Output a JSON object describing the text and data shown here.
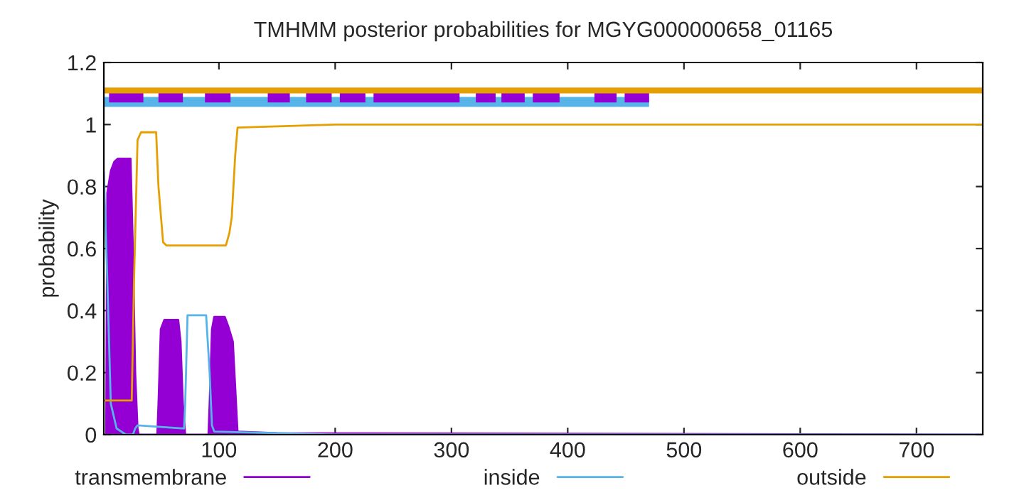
{
  "chart_data": {
    "type": "line",
    "title": "TMHMM posterior probabilities for MGYG000000658_01165",
    "ylabel": "probability",
    "xlim": [
      1,
      757
    ],
    "xticks": [
      100,
      200,
      300,
      400,
      500,
      600,
      700
    ],
    "ylim": [
      0,
      1.2
    ],
    "yticks": [
      0,
      0.2,
      0.4,
      0.6,
      0.8,
      1,
      1.2
    ],
    "grid": false,
    "legend": "bottom",
    "ref_lines": [
      {
        "axis": "y",
        "value": 1.11,
        "color": "#e69f00"
      }
    ],
    "series": [
      {
        "color": "#56b4e9",
        "x": [
          1,
          470
        ],
        "values": [
          1.073,
          1.073
        ]
      },
      {
        "color": "#9400d3",
        "x": [
          5.5,
          35,
          null,
          48,
          69,
          null,
          88,
          110,
          null,
          142,
          161,
          null,
          175,
          197,
          null,
          204,
          226,
          null,
          233,
          307,
          null,
          321,
          338,
          null,
          343,
          363,
          null,
          370,
          393,
          null,
          423,
          442,
          null,
          449,
          470
        ],
        "values": [
          1.087,
          1.087,
          null,
          1.087,
          1.087,
          null,
          1.087,
          1.087,
          null,
          1.087,
          1.087,
          null,
          1.087,
          1.087,
          null,
          1.087,
          1.087,
          null,
          1.087,
          1.087,
          null,
          1.087,
          1.087,
          null,
          1.087,
          1.087,
          null,
          1.087,
          1.087,
          null,
          1.087,
          1.087,
          null,
          1.087,
          1.087
        ]
      },
      {
        "type": "area",
        "name": "transmembrane",
        "color": "#9400d3",
        "x": [
          1,
          3,
          4,
          7,
          10,
          13,
          24,
          26,
          28,
          30,
          31,
          47,
          48,
          50,
          53,
          65,
          67,
          69,
          71,
          91,
          92,
          94,
          96,
          105,
          108,
          112,
          116,
          150,
          757
        ],
        "values": [
          0,
          0,
          0.78,
          0.85,
          0.88,
          0.89,
          0.89,
          0.6,
          0.2,
          0.02,
          0,
          0,
          0.1,
          0.34,
          0.37,
          0.37,
          0.3,
          0.1,
          0,
          0,
          0.1,
          0.34,
          0.38,
          0.38,
          0.35,
          0.3,
          0.01,
          0.005,
          0
        ]
      },
      {
        "name": "inside",
        "color": "#56b4e9",
        "x": [
          1,
          4,
          7,
          12,
          20,
          26,
          28,
          30,
          50,
          70,
          71,
          73,
          89,
          92,
          94,
          96,
          150,
          200,
          757
        ],
        "values": [
          0.85,
          0.5,
          0.1,
          0.02,
          0,
          0,
          0.02,
          0.03,
          0.025,
          0.02,
          0.1,
          0.385,
          0.385,
          0.2,
          0.03,
          0.01,
          0.005,
          0,
          0
        ]
      },
      {
        "name": "outside",
        "color": "#e69f00",
        "x": [
          1,
          25,
          27,
          30,
          33,
          46,
          48,
          52,
          55,
          106,
          109,
          111,
          114,
          116,
          200,
          757
        ],
        "values": [
          0.11,
          0.11,
          0.5,
          0.95,
          0.975,
          0.975,
          0.8,
          0.62,
          0.61,
          0.61,
          0.65,
          0.7,
          0.9,
          0.99,
          1.0,
          1.0
        ]
      }
    ]
  }
}
